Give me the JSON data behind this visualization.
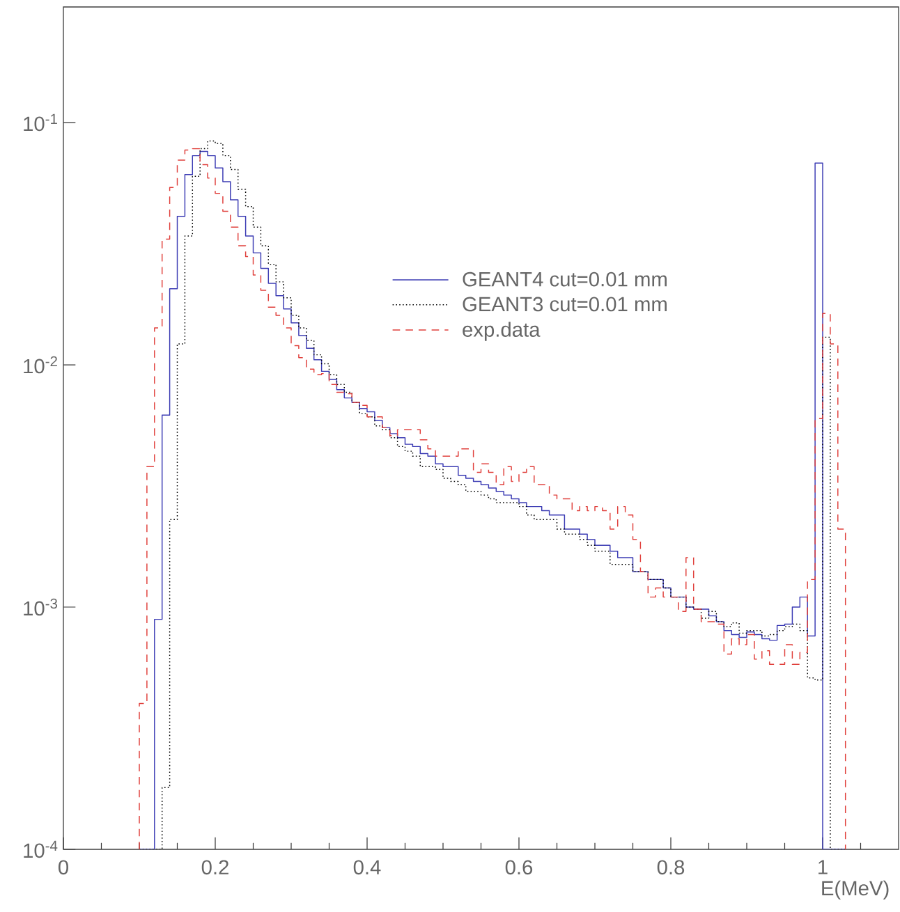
{
  "chart_data": {
    "type": "histogram",
    "xlabel": "E(MeV)",
    "bins": [
      0.1,
      0.11,
      0.12,
      0.13,
      0.14,
      0.15,
      0.16,
      0.17,
      0.18,
      0.19,
      0.2,
      0.21,
      0.22,
      0.23,
      0.24,
      0.25,
      0.26,
      0.27,
      0.28,
      0.29,
      0.3,
      0.31,
      0.32,
      0.33,
      0.34,
      0.35,
      0.36,
      0.37,
      0.38,
      0.39,
      0.4,
      0.41,
      0.42,
      0.43,
      0.44,
      0.45,
      0.46,
      0.47,
      0.48,
      0.49,
      0.5,
      0.51,
      0.52,
      0.53,
      0.54,
      0.55,
      0.56,
      0.57,
      0.58,
      0.59,
      0.6,
      0.61,
      0.62,
      0.63,
      0.64,
      0.65,
      0.66,
      0.67,
      0.68,
      0.69,
      0.7,
      0.71,
      0.72,
      0.73,
      0.74,
      0.75,
      0.76,
      0.77,
      0.78,
      0.79,
      0.8,
      0.81,
      0.82,
      0.83,
      0.84,
      0.85,
      0.86,
      0.87,
      0.88,
      0.89,
      0.9,
      0.91,
      0.92,
      0.93,
      0.94,
      0.95,
      0.96,
      0.97,
      0.98,
      0.99,
      1.0,
      1.01,
      1.02,
      1.03
    ],
    "series": [
      {
        "name": "GEANT4 cut=0.01 mm",
        "color": "#3c3cb4",
        "line_style": "solid",
        "values": [
          null,
          null,
          0.00089,
          0.0062,
          0.0206,
          0.041,
          0.061,
          0.073,
          0.076,
          0.073,
          0.065,
          0.057,
          0.048,
          0.041,
          0.034,
          0.029,
          0.025,
          0.0217,
          0.0193,
          0.017,
          0.0149,
          0.0132,
          0.0117,
          0.0105,
          0.0094,
          0.0087,
          0.0079,
          0.0073,
          0.007,
          0.0066,
          0.0064,
          0.0059,
          0.0055,
          0.0052,
          0.005,
          0.0047,
          0.0046,
          0.0043,
          0.0042,
          0.0039,
          0.0038,
          0.0038,
          0.0035,
          0.0034,
          0.0033,
          0.0032,
          0.0031,
          0.003,
          0.0029,
          0.0028,
          0.0027,
          0.0026,
          0.0026,
          0.0025,
          0.0024,
          0.0024,
          0.0021,
          0.0021,
          0.002,
          0.0019,
          0.0018,
          0.0018,
          0.0017,
          0.0016,
          0.0016,
          0.0014,
          0.0014,
          0.0013,
          0.0013,
          0.0012,
          0.0011,
          0.0011,
          0.001,
          0.00098,
          0.00098,
          0.00092,
          0.00087,
          0.0008,
          0.00077,
          0.00075,
          0.00079,
          0.00077,
          0.00074,
          0.00073,
          0.00084,
          0.00085,
          0.001,
          0.0011,
          0.00076,
          0.068,
          null,
          null,
          null
        ]
      },
      {
        "name": "GEANT3 cut=0.01 mm",
        "color": "#000000",
        "line_style": "dotted",
        "values": [
          null,
          null,
          null,
          0.00018,
          0.0023,
          0.0122,
          0.034,
          0.06,
          0.078,
          0.084,
          0.082,
          0.073,
          0.064,
          0.053,
          0.045,
          0.037,
          0.031,
          0.026,
          0.022,
          0.0189,
          0.016,
          0.0142,
          0.0126,
          0.011,
          0.0101,
          0.0091,
          0.0083,
          0.0077,
          0.007,
          0.0063,
          0.0061,
          0.0056,
          0.0054,
          0.005,
          0.0046,
          0.0044,
          0.0042,
          0.0038,
          0.0038,
          0.0037,
          0.0034,
          0.0033,
          0.0032,
          0.003,
          0.003,
          0.0029,
          0.0028,
          0.0027,
          0.0027,
          0.0027,
          0.0026,
          0.0024,
          0.0023,
          0.0023,
          0.0023,
          0.0021,
          0.002,
          0.002,
          0.0019,
          0.0018,
          0.0017,
          0.0017,
          0.0015,
          0.0015,
          0.0015,
          0.0014,
          0.0014,
          0.0013,
          0.0013,
          0.0012,
          0.0011,
          0.0011,
          0.001,
          0.00098,
          0.0009,
          0.00096,
          0.00087,
          0.00083,
          0.00086,
          0.00078,
          0.0008,
          0.0008,
          0.00076,
          0.00077,
          0.0008,
          0.00083,
          0.00085,
          0.0008,
          0.00051,
          0.0005,
          0.013,
          null,
          null
        ]
      },
      {
        "name": "exp.data",
        "color": "#e0403c",
        "line_style": "dashed",
        "values": [
          0.0004,
          0.0038,
          0.0142,
          0.033,
          0.054,
          0.07,
          0.077,
          0.078,
          0.067,
          0.059,
          0.051,
          0.043,
          0.037,
          0.031,
          0.028,
          0.0235,
          0.0203,
          0.0173,
          0.016,
          0.0142,
          0.012,
          0.0107,
          0.0096,
          0.0091,
          0.0092,
          0.0083,
          0.0077,
          0.0076,
          0.007,
          0.0068,
          0.0061,
          0.0061,
          0.0055,
          0.0051,
          0.0054,
          0.0054,
          0.0054,
          0.0049,
          0.0045,
          0.0042,
          0.0042,
          0.0042,
          0.0045,
          0.0045,
          0.0036,
          0.0039,
          0.0036,
          0.0032,
          0.0038,
          0.0033,
          0.0036,
          0.0038,
          0.0032,
          0.0032,
          0.0029,
          0.0028,
          0.0028,
          0.0025,
          0.0026,
          0.0025,
          0.0026,
          0.0025,
          0.0021,
          0.0026,
          0.0024,
          0.0019,
          0.0014,
          0.0011,
          0.0012,
          0.0011,
          0.0011,
          0.00096,
          0.0016,
          0.00098,
          0.00087,
          0.00087,
          0.00085,
          0.00064,
          0.00074,
          0.0007,
          0.00077,
          0.00061,
          0.00066,
          0.00058,
          0.00058,
          0.0007,
          0.00058,
          0.00065,
          0.0013,
          0.006,
          0.0163,
          0.0122,
          0.0021
        ]
      }
    ],
    "xlim": [
      0,
      1.1
    ],
    "ylim": [
      0.0001,
      0.3
    ],
    "xticks": [
      0,
      0.2,
      0.4,
      0.6,
      0.8,
      1
    ],
    "yticks": [
      {
        "value": 0.0001,
        "label": "10$^{-4}$"
      },
      {
        "value": 0.001,
        "label": "10$^{-3}$"
      },
      {
        "value": 0.01,
        "label": "10$^{-2}$"
      },
      {
        "value": 0.1,
        "label": "10$^{-1}$"
      }
    ],
    "log": "y",
    "legend": "top right"
  }
}
